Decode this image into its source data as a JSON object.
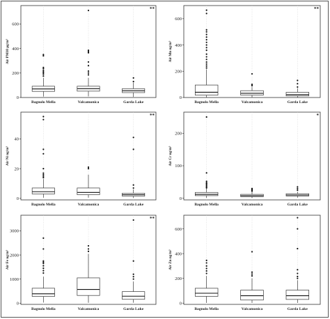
{
  "chart_data": [
    {
      "type": "boxplot",
      "ylabel": "Air PM10 μg/m³",
      "ylim": [
        0,
        750
      ],
      "yticks": [
        0,
        200,
        400,
        600
      ],
      "significance": "**",
      "categories": [
        "Bagnolo Mella",
        "Valcamonica",
        "Garda Lake"
      ],
      "boxes": [
        {
          "min": 8,
          "q1": 50,
          "median": 70,
          "q3": 92,
          "max": 160,
          "outliers": [
            175,
            190,
            200,
            210,
            220,
            235,
            245,
            340,
            350
          ]
        },
        {
          "min": 10,
          "q1": 52,
          "median": 72,
          "q3": 92,
          "max": 160,
          "outliers": [
            185,
            200,
            215,
            260,
            290,
            365,
            375,
            385,
            710
          ]
        },
        {
          "min": 5,
          "q1": 40,
          "median": 55,
          "q3": 72,
          "max": 120,
          "outliers": [
            130,
            160
          ]
        }
      ]
    },
    {
      "type": "boxplot",
      "ylabel": "Air Mn ng/m³",
      "ylim": [
        0,
        700
      ],
      "yticks": [
        0,
        200,
        400,
        600
      ],
      "significance": "**",
      "categories": [
        "Bagnolo Mella",
        "Valcamonica",
        "Garda Lake"
      ],
      "boxes": [
        {
          "min": 0,
          "q1": 18,
          "median": 40,
          "q3": 95,
          "max": 215,
          "outliers": [
            225,
            240,
            255,
            270,
            290,
            310,
            330,
            360,
            380,
            400,
            420,
            440,
            460,
            480,
            500,
            515,
            640,
            665
          ]
        },
        {
          "min": 2,
          "q1": 18,
          "median": 32,
          "q3": 52,
          "max": 80,
          "outliers": [
            90,
            100,
            180
          ]
        },
        {
          "min": 1,
          "q1": 12,
          "median": 22,
          "q3": 40,
          "max": 70,
          "outliers": [
            80,
            105,
            130
          ]
        }
      ]
    },
    {
      "type": "boxplot",
      "ylabel": "Air Ni ng/m³",
      "ylim": [
        -1,
        58
      ],
      "yticks": [
        0,
        20,
        40
      ],
      "significance": "**",
      "categories": [
        "Bagnolo Mella",
        "Valcamonica",
        "Garda Lake"
      ],
      "boxes": [
        {
          "min": 0.5,
          "q1": 3,
          "median": 4.5,
          "q3": 7,
          "max": 13,
          "outliers": [
            14,
            15,
            16,
            17,
            20,
            30,
            33,
            53,
            55
          ]
        },
        {
          "min": 0.5,
          "q1": 2.5,
          "median": 4,
          "q3": 7,
          "max": 16,
          "outliers": [
            20,
            21
          ]
        },
        {
          "min": 0.3,
          "q1": 1.5,
          "median": 2.5,
          "q3": 3.5,
          "max": 6,
          "outliers": [
            7,
            9,
            33,
            41
          ]
        }
      ]
    },
    {
      "type": "boxplot",
      "ylabel": "Air Cr ng/m³",
      "ylim": [
        -5,
        265
      ],
      "yticks": [
        0,
        100,
        200
      ],
      "significance": "*",
      "categories": [
        "Bagnolo Mella",
        "Valcamonica",
        "Garda Lake"
      ],
      "boxes": [
        {
          "min": 1,
          "q1": 8,
          "median": 12,
          "q3": 18,
          "max": 30,
          "outliers": [
            32,
            35,
            38,
            42,
            45,
            48,
            52,
            78,
            250
          ]
        },
        {
          "min": 1,
          "q1": 5,
          "median": 8,
          "q3": 12,
          "max": 20,
          "outliers": [
            22,
            25,
            28,
            30
          ]
        },
        {
          "min": 2,
          "q1": 7,
          "median": 10,
          "q3": 14,
          "max": 20,
          "outliers": [
            25,
            30,
            35
          ]
        }
      ]
    },
    {
      "type": "boxplot",
      "ylabel": "Air Fe ng/m³",
      "ylim": [
        -50,
        3650
      ],
      "yticks": [
        0,
        1000,
        2000,
        3000
      ],
      "significance": "**",
      "categories": [
        "Bagnolo Mella",
        "Valcamonica",
        "Garda Lake"
      ],
      "boxes": [
        {
          "min": 30,
          "q1": 280,
          "median": 390,
          "q3": 620,
          "max": 1100,
          "outliers": [
            1250,
            1350,
            1450,
            1550,
            1650,
            1700,
            1750,
            2250,
            2700
          ]
        },
        {
          "min": 20,
          "q1": 320,
          "median": 570,
          "q3": 1050,
          "max": 2050,
          "outliers": [
            2150,
            2250,
            2380
          ]
        },
        {
          "min": 20,
          "q1": 160,
          "median": 290,
          "q3": 480,
          "max": 900,
          "outliers": [
            1000,
            1100,
            1200,
            1750,
            3450
          ]
        }
      ]
    },
    {
      "type": "boxplot",
      "ylabel": "Air Zn ng/m³",
      "ylim": [
        -10,
        710
      ],
      "yticks": [
        0,
        200,
        400,
        600
      ],
      "significance": "",
      "categories": [
        "Bagnolo Mella",
        "Valcamonica",
        "Garda Lake"
      ],
      "boxes": [
        {
          "min": 2,
          "q1": 55,
          "median": 80,
          "q3": 120,
          "max": 220,
          "outliers": [
            240,
            260,
            280,
            300,
            325,
            345
          ]
        },
        {
          "min": 2,
          "q1": 25,
          "median": 60,
          "q3": 105,
          "max": 200,
          "outliers": [
            220,
            235,
            250,
            415
          ]
        },
        {
          "min": 2,
          "q1": 30,
          "median": 60,
          "q3": 105,
          "max": 185,
          "outliers": [
            200,
            215,
            240,
            270,
            440,
            600,
            690
          ]
        }
      ]
    }
  ]
}
